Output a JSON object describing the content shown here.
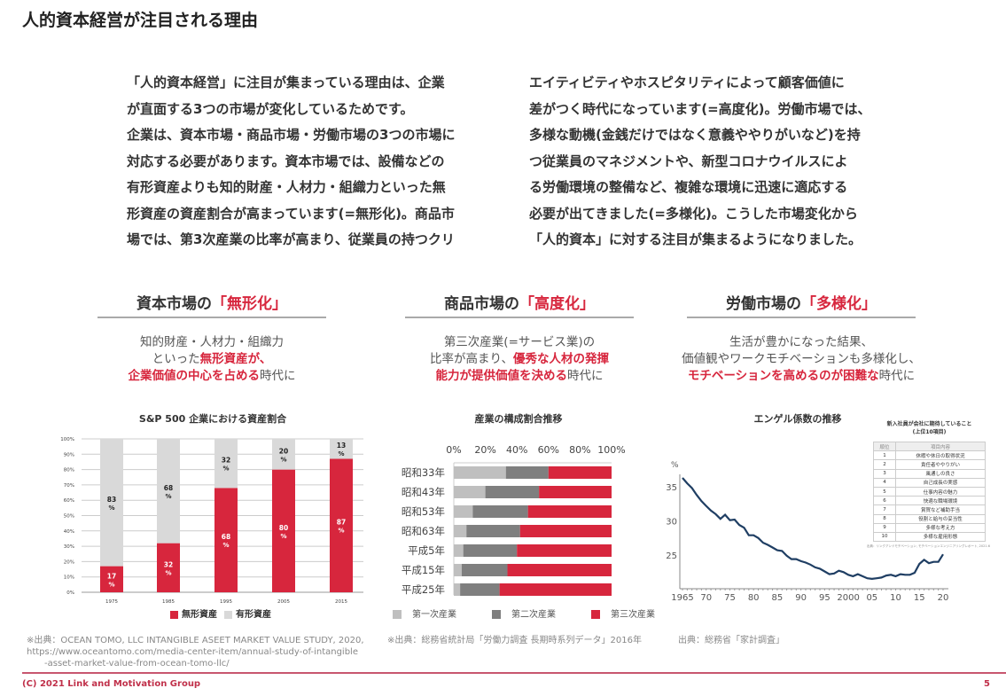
{
  "title": "人的資本経営が注目される理由",
  "body": {
    "left": [
      "「人的資本経営」に注目が集まっている理由は、企業",
      "が直面する3つの市場が変化しているためです。",
      "企業は、資本市場・商品市場・労働市場の3つの市場に",
      "対応する必要があります。資本市場では、設備などの",
      "有形資産よりも知的財産・人材力・組織力といった無",
      "形資産の資産割合が高まっています(=無形化)。商品市",
      "場では、第3次産業の比率が高まり、従業員の持つクリ"
    ],
    "right": [
      "エイティビティやホスピタリティによって顧客価値に",
      "差がつく時代になっています(=高度化)。労働市場では、",
      "多様な動機(金銭だけではなく意義ややりがいなど)を持",
      "つ従業員のマネジメントや、新型コロナウイルスによ",
      "る労働環境の整備など、複雑な環境に迅速に適応する",
      "必要が出てきました(=多様化)。こうした市場変化から",
      "「人的資本」に対する注目が集まるようになりました。"
    ]
  },
  "columns": [
    {
      "head": "資本市場の",
      "head_hl": "「無形化」",
      "desc": [
        [
          "知的財産・人材力・組織力",
          ""
        ],
        [
          "といった",
          "無形資産が、"
        ],
        [
          "",
          "企業価値の中心を占める",
          "時代に"
        ]
      ]
    },
    {
      "head": "商品市場の",
      "head_hl": "「高度化」",
      "desc": [
        [
          "第三次産業(=サービス業)の",
          ""
        ],
        [
          "比率が高まり、",
          "優秀な人材の発揮"
        ],
        [
          "",
          "能力が提供価値を決める",
          "時代に"
        ]
      ]
    },
    {
      "head": "労働市場の",
      "head_hl": "「多様化」",
      "desc": [
        [
          "生活が豊かになった結果、",
          ""
        ],
        [
          "価値観やワークモチベーションも多様化し、",
          ""
        ],
        [
          "",
          "モチベーションを高めるのが困難な",
          "時代に"
        ]
      ]
    }
  ],
  "chart_data": [
    {
      "type": "bar",
      "stacked": true,
      "title": "S&P 500 企業における資産割合",
      "categories": [
        "1975",
        "1985",
        "1995",
        "2005",
        "2015"
      ],
      "series": [
        {
          "name": "無形資産",
          "values": [
            17,
            32,
            68,
            80,
            87
          ],
          "color": "#d7263d"
        },
        {
          "name": "有形資産",
          "values": [
            83,
            68,
            32,
            20,
            13
          ],
          "color": "#d9d9d9"
        }
      ],
      "yticks": [
        "0%",
        "10%",
        "20%",
        "30%",
        "40%",
        "50%",
        "60%",
        "70%",
        "80%",
        "90%",
        "100%"
      ],
      "ylim": [
        0,
        100
      ],
      "value_suffix": "%",
      "legend": "bottom"
    },
    {
      "type": "bar",
      "orientation": "horizontal",
      "stacked": true,
      "title": "産業の構成割合推移",
      "categories": [
        "昭和33年",
        "昭和43年",
        "昭和53年",
        "昭和63年",
        "平成5年",
        "平成15年",
        "平成25年"
      ],
      "series": [
        {
          "name": "第一次産業",
          "values": [
            33,
            20,
            12,
            8,
            6,
            5,
            4
          ],
          "color": "#bfbfbf"
        },
        {
          "name": "第二次産業",
          "values": [
            27,
            34,
            35,
            34,
            34,
            29,
            25
          ],
          "color": "#7f7f7f"
        },
        {
          "name": "第三次産業",
          "values": [
            40,
            46,
            53,
            58,
            60,
            66,
            71
          ],
          "color": "#d7263d"
        }
      ],
      "xticks": [
        "0%",
        "20%",
        "40%",
        "60%",
        "80%",
        "100%"
      ],
      "xlim": [
        0,
        100
      ],
      "legend": "bottom"
    },
    {
      "type": "line",
      "title": "エンゲル係数の推移",
      "ylabel": "%",
      "x": [
        1965,
        1966,
        1967,
        1968,
        1969,
        1970,
        1971,
        1972,
        1973,
        1974,
        1975,
        1976,
        1977,
        1978,
        1979,
        1980,
        1981,
        1982,
        1983,
        1984,
        1985,
        1986,
        1987,
        1988,
        1989,
        1990,
        1991,
        1992,
        1993,
        1994,
        1995,
        1996,
        1997,
        1998,
        1999,
        2000,
        2001,
        2002,
        2003,
        2004,
        2005,
        2006,
        2007,
        2008,
        2009,
        2010,
        2011,
        2012,
        2013,
        2014,
        2015,
        2016,
        2017,
        2018,
        2019,
        2020
      ],
      "y": [
        36.3,
        35.5,
        34.8,
        33.8,
        32.9,
        32.2,
        31.5,
        31.0,
        30.3,
        30.9,
        30.1,
        30.2,
        29.4,
        29.0,
        27.9,
        27.9,
        27.5,
        26.8,
        26.5,
        26.1,
        25.7,
        25.6,
        24.9,
        24.4,
        24.4,
        24.1,
        23.9,
        23.6,
        23.2,
        23.0,
        22.6,
        22.2,
        22.3,
        22.7,
        22.5,
        22.1,
        21.9,
        22.2,
        21.9,
        21.6,
        21.5,
        21.6,
        21.7,
        22.0,
        22.1,
        21.9,
        22.2,
        22.1,
        22.1,
        22.4,
        23.7,
        24.3,
        23.8,
        24.0,
        24.0,
        25.1
      ],
      "xticks": [
        "1965",
        "70",
        "75",
        "80",
        "85",
        "90",
        "95",
        "2000",
        "05",
        "10",
        "15",
        "20"
      ],
      "yticks": [
        "25",
        "30",
        "35"
      ],
      "ylim": [
        20,
        37
      ],
      "color": "#1f3e63"
    }
  ],
  "rank_table": {
    "title": [
      "新入社員が会社に期待していること",
      "(上位10項目)"
    ],
    "headers": [
      "順位",
      "項目内容"
    ],
    "rows": [
      [
        "1",
        "休暇や休日の取得状況"
      ],
      [
        "2",
        "責任者ややりがい"
      ],
      [
        "3",
        "風通しの良さ"
      ],
      [
        "4",
        "自己成長の実感"
      ],
      [
        "5",
        "仕事内容の魅力"
      ],
      [
        "6",
        "快適な職場環境"
      ],
      [
        "7",
        "賞賀など補助手当"
      ],
      [
        "8",
        "役割と給与の妥当性"
      ],
      [
        "9",
        "多様な考え方"
      ],
      [
        "10",
        "多様な雇用形態"
      ]
    ],
    "source": "出典：リンクアンドモチベーション, モチベーションエンジニアリングレポート, 2021.6"
  },
  "notes": {
    "left": [
      "※出典：OCEAN TOMO, LLC INTANGIBLE ASEET MARKET VALUE STUDY, 2020,",
      "https://www.oceantomo.com/media-center-item/annual-study-of-intangible",
      "　　-asset-market-value-from-ocean-tomo-llc/"
    ],
    "middle": "※出典：総務省統計局「労働力調査 長期時系列データ」2016年",
    "right": "出典：総務省「家計調査」"
  },
  "footer": {
    "copyright": "(C) 2021 Link and Motivation Group",
    "page": "5"
  }
}
